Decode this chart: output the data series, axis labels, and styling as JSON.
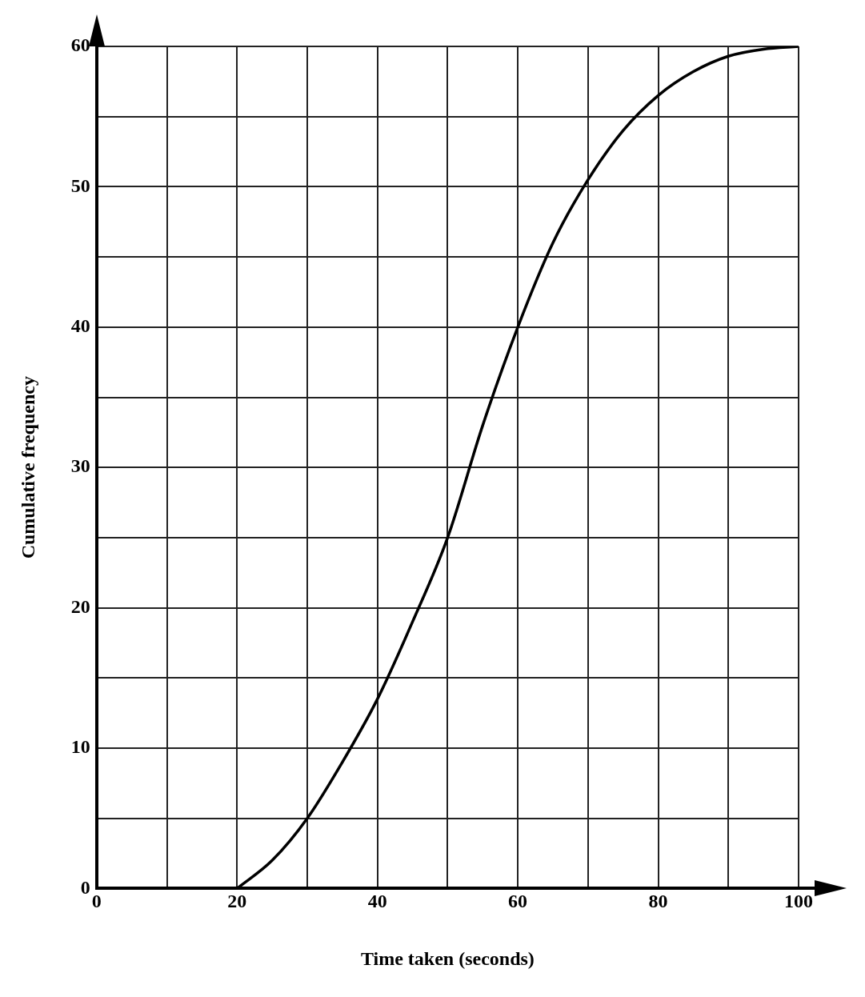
{
  "chart_data": {
    "type": "line",
    "xlabel": "Time taken (seconds)",
    "ylabel": "Cumulative frequency",
    "xlim": [
      0,
      100
    ],
    "ylim": [
      0,
      60
    ],
    "xticks": [
      0,
      {
        "value": 10,
        "label": null
      },
      20,
      {
        "value": 30,
        "label": null
      },
      40,
      {
        "value": 50,
        "label": null
      },
      60,
      {
        "value": 70,
        "label": null
      },
      80,
      {
        "value": 90,
        "label": null
      },
      100
    ],
    "yticks": [
      0,
      {
        "value": 5,
        "label": null
      },
      10,
      {
        "value": 15,
        "label": null
      },
      20,
      {
        "value": 25,
        "label": null
      },
      30,
      {
        "value": 35,
        "label": null
      },
      40,
      {
        "value": 45,
        "label": null
      },
      50,
      {
        "value": 55,
        "label": null
      },
      60
    ],
    "grid": true,
    "legend": false,
    "marker": "none",
    "line_style": "solid",
    "series": [
      {
        "color": "#000000",
        "x": [
          20,
          25,
          30,
          35,
          40,
          45,
          50,
          55,
          60,
          65,
          70,
          75,
          80,
          85,
          90,
          95,
          100
        ],
        "values": [
          0,
          2,
          5,
          9,
          13.5,
          19,
          25,
          33,
          40,
          46,
          50.5,
          54,
          56.5,
          58.2,
          59.3,
          59.8,
          60
        ]
      }
    ]
  }
}
